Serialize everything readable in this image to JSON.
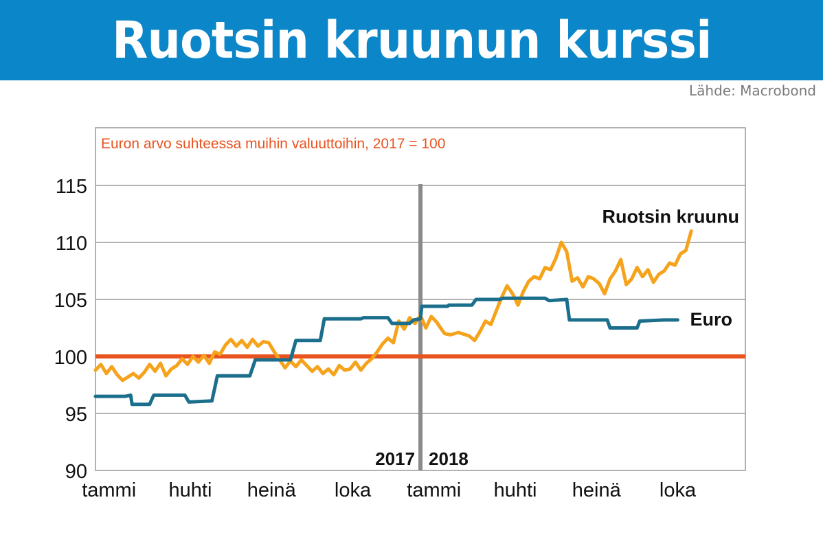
{
  "header": {
    "title": "Ruotsin kruunun kurssi"
  },
  "source": "Lähde: Macrobond",
  "chart_data": {
    "type": "line",
    "subtitle": "Euron arvo suhteessa muihin valuuttoihin, 2017 = 100",
    "ylim": [
      90,
      120
    ],
    "xlim": [
      0,
      24
    ],
    "yticks": [
      90,
      95,
      100,
      105,
      110,
      115
    ],
    "grid": true,
    "reference_line": {
      "value": 100,
      "color": "#e8531f"
    },
    "year_divider": {
      "x": 12,
      "labels": [
        "2017",
        "2018"
      ]
    },
    "x_tick_labels": [
      {
        "x": 0.5,
        "label": "tammi"
      },
      {
        "x": 3.5,
        "label": "huhti"
      },
      {
        "x": 6.5,
        "label": "heinä"
      },
      {
        "x": 9.5,
        "label": "loka"
      },
      {
        "x": 12.5,
        "label": "tammi"
      },
      {
        "x": 15.5,
        "label": "huhti"
      },
      {
        "x": 18.5,
        "label": "heinä"
      },
      {
        "x": 21.5,
        "label": "loka"
      }
    ],
    "series": [
      {
        "name": "Ruotsin kruunu",
        "color": "#f5a31c",
        "points": [
          [
            0.0,
            98.8
          ],
          [
            0.2,
            99.3
          ],
          [
            0.4,
            98.5
          ],
          [
            0.6,
            99.1
          ],
          [
            0.8,
            98.4
          ],
          [
            1.0,
            97.9
          ],
          [
            1.2,
            98.2
          ],
          [
            1.4,
            98.5
          ],
          [
            1.6,
            98.1
          ],
          [
            1.8,
            98.6
          ],
          [
            2.0,
            99.3
          ],
          [
            2.2,
            98.7
          ],
          [
            2.4,
            99.4
          ],
          [
            2.6,
            98.3
          ],
          [
            2.8,
            98.9
          ],
          [
            3.0,
            99.2
          ],
          [
            3.2,
            99.8
          ],
          [
            3.4,
            99.3
          ],
          [
            3.6,
            100.0
          ],
          [
            3.8,
            99.5
          ],
          [
            4.0,
            100.1
          ],
          [
            4.2,
            99.4
          ],
          [
            4.4,
            100.4
          ],
          [
            4.6,
            100.2
          ],
          [
            4.8,
            101.0
          ],
          [
            5.0,
            101.5
          ],
          [
            5.2,
            100.9
          ],
          [
            5.4,
            101.4
          ],
          [
            5.6,
            100.8
          ],
          [
            5.8,
            101.5
          ],
          [
            6.0,
            100.9
          ],
          [
            6.2,
            101.3
          ],
          [
            6.4,
            101.2
          ],
          [
            6.6,
            100.4
          ],
          [
            6.8,
            99.7
          ],
          [
            7.0,
            99.0
          ],
          [
            7.2,
            99.6
          ],
          [
            7.4,
            99.1
          ],
          [
            7.6,
            99.7
          ],
          [
            7.8,
            99.2
          ],
          [
            8.0,
            98.7
          ],
          [
            8.2,
            99.1
          ],
          [
            8.4,
            98.5
          ],
          [
            8.6,
            98.9
          ],
          [
            8.8,
            98.4
          ],
          [
            9.0,
            99.2
          ],
          [
            9.2,
            98.8
          ],
          [
            9.4,
            98.9
          ],
          [
            9.6,
            99.5
          ],
          [
            9.8,
            98.8
          ],
          [
            10.0,
            99.4
          ],
          [
            10.2,
            99.8
          ],
          [
            10.4,
            100.4
          ],
          [
            10.6,
            101.1
          ],
          [
            10.8,
            101.6
          ],
          [
            11.0,
            101.2
          ],
          [
            11.2,
            103.1
          ],
          [
            11.4,
            102.4
          ],
          [
            11.6,
            103.4
          ],
          [
            11.8,
            102.9
          ],
          [
            12.0,
            103.6
          ],
          [
            12.2,
            102.5
          ],
          [
            12.4,
            103.5
          ],
          [
            12.6,
            103.0
          ],
          [
            12.8,
            102.3
          ],
          [
            12.9,
            102.0
          ],
          [
            13.1,
            101.9
          ],
          [
            13.4,
            102.1
          ],
          [
            13.8,
            101.8
          ],
          [
            14.0,
            101.4
          ],
          [
            14.2,
            102.2
          ],
          [
            14.4,
            103.1
          ],
          [
            14.6,
            102.8
          ],
          [
            14.8,
            104.0
          ],
          [
            15.0,
            105.2
          ],
          [
            15.2,
            106.2
          ],
          [
            15.4,
            105.5
          ],
          [
            15.6,
            104.5
          ],
          [
            15.8,
            105.7
          ],
          [
            16.0,
            106.6
          ],
          [
            16.2,
            107.0
          ],
          [
            16.4,
            106.8
          ],
          [
            16.6,
            107.8
          ],
          [
            16.8,
            107.6
          ],
          [
            17.0,
            108.6
          ],
          [
            17.2,
            110.0
          ],
          [
            17.4,
            109.2
          ],
          [
            17.6,
            106.6
          ],
          [
            17.8,
            106.9
          ],
          [
            18.0,
            106.1
          ],
          [
            18.2,
            107.0
          ],
          [
            18.4,
            106.8
          ],
          [
            18.6,
            106.4
          ],
          [
            18.8,
            105.5
          ],
          [
            19.0,
            106.8
          ],
          [
            19.2,
            107.5
          ],
          [
            19.4,
            108.5
          ],
          [
            19.6,
            106.3
          ],
          [
            19.8,
            106.8
          ],
          [
            20.0,
            107.8
          ],
          [
            20.2,
            107.0
          ],
          [
            20.4,
            107.6
          ],
          [
            20.6,
            106.5
          ],
          [
            20.8,
            107.2
          ],
          [
            21.0,
            107.5
          ],
          [
            21.2,
            108.2
          ],
          [
            21.4,
            108.0
          ],
          [
            21.6,
            109.0
          ],
          [
            21.8,
            109.3
          ],
          [
            22.0,
            111.0
          ]
        ]
      },
      {
        "name": "Euro",
        "color": "#1b6f8c",
        "points": [
          [
            0.0,
            96.5
          ],
          [
            1.1,
            96.5
          ],
          [
            1.3,
            96.6
          ],
          [
            1.35,
            95.8
          ],
          [
            2.0,
            95.8
          ],
          [
            2.15,
            96.6
          ],
          [
            3.3,
            96.6
          ],
          [
            3.45,
            96.0
          ],
          [
            4.3,
            96.1
          ],
          [
            4.5,
            98.3
          ],
          [
            5.7,
            98.3
          ],
          [
            5.9,
            99.7
          ],
          [
            7.2,
            99.7
          ],
          [
            7.4,
            101.4
          ],
          [
            8.3,
            101.4
          ],
          [
            8.45,
            103.3
          ],
          [
            9.8,
            103.3
          ],
          [
            9.9,
            103.4
          ],
          [
            10.8,
            103.4
          ],
          [
            10.95,
            102.9
          ],
          [
            11.6,
            102.9
          ],
          [
            11.75,
            103.2
          ],
          [
            12.0,
            103.3
          ],
          [
            12.05,
            104.4
          ],
          [
            13.0,
            104.4
          ],
          [
            13.05,
            104.5
          ],
          [
            13.9,
            104.5
          ],
          [
            14.05,
            105.0
          ],
          [
            14.9,
            105.0
          ],
          [
            15.05,
            105.1
          ],
          [
            16.6,
            105.1
          ],
          [
            16.75,
            104.9
          ],
          [
            17.4,
            105.0
          ],
          [
            17.5,
            103.2
          ],
          [
            18.9,
            103.2
          ],
          [
            19.0,
            102.5
          ],
          [
            20.0,
            102.5
          ],
          [
            20.1,
            103.1
          ],
          [
            21.0,
            103.2
          ],
          [
            21.5,
            103.2
          ]
        ]
      }
    ]
  }
}
